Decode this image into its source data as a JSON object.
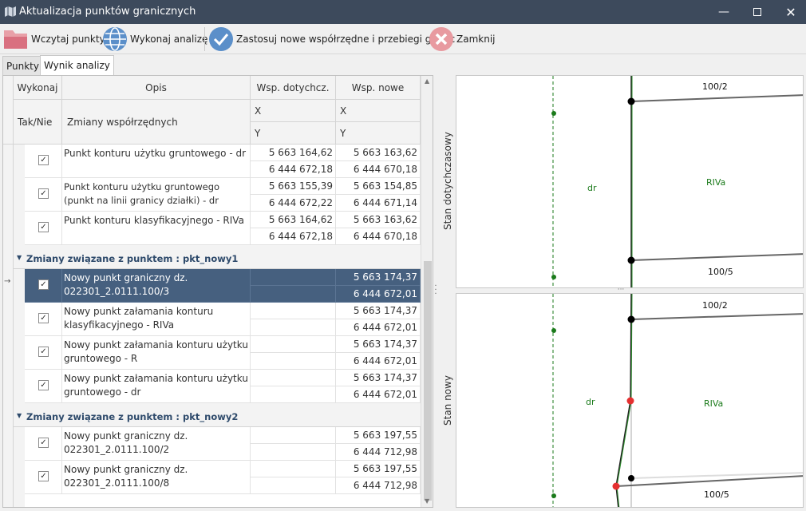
{
  "window": {
    "title": "Aktualizacja punktów granicznych"
  },
  "toolbar": {
    "load": "Wczytaj punkty",
    "analyze": "Wykonaj analizę",
    "apply": "Zastosuj nowe współrzędne i przebiegi granic",
    "close": "Zamknij"
  },
  "tabs": [
    "Punkty",
    "Wynik analizy"
  ],
  "grid": {
    "h_exec": "Wykonaj",
    "h_desc": "Opis",
    "h_old": "Wsp. dotychcz.",
    "h_new": "Wsp. nowe",
    "h_yesno": "Tak/Nie",
    "h_changes": "Zmiany współrzędnych",
    "h_x": "X",
    "h_y": "Y",
    "rows": [
      {
        "desc": "Punkt konturu użytku gruntowego - dr",
        "old_x": "5 663 164,62",
        "old_y": "6 444 672,18",
        "new_x": "5 663 163,62",
        "new_y": "6 444 670,18"
      },
      {
        "desc": "Punkt konturu użytku gruntowego (punkt na linii granicy działki) - dr",
        "old_x": "5 663 155,39",
        "old_y": "6 444 672,22",
        "new_x": "5 663 154,85",
        "new_y": "6 444 671,14"
      },
      {
        "desc": "Punkt konturu klasyfikacyjnego - RIVa",
        "old_x": "5 663 164,62",
        "old_y": "6 444 672,18",
        "new_x": "5 663 163,62",
        "new_y": "6 444 670,18"
      }
    ],
    "group1": "Zmiany związane z punktem : pkt_nowy1",
    "rows1": [
      {
        "desc": "Nowy punkt graniczny dz. 022301_2.0111.100/3",
        "new_x": "5 663 174,37",
        "new_y": "6 444 672,01"
      },
      {
        "desc": "Nowy punkt załamania konturu klasyfikacyjnego - RIVa",
        "new_x": "5 663 174,37",
        "new_y": "6 444 672,01"
      },
      {
        "desc": "Nowy punkt załamania konturu użytku gruntowego - R",
        "new_x": "5 663 174,37",
        "new_y": "6 444 672,01"
      },
      {
        "desc": "Nowy punkt załamania konturu użytku gruntowego - dr",
        "new_x": "5 663 174,37",
        "new_y": "6 444 672,01"
      }
    ],
    "group2": "Zmiany związane z punktem : pkt_nowy2",
    "rows2": [
      {
        "desc": "Nowy punkt graniczny dz. 022301_2.0111.100/2",
        "new_x": "5 663 197,55",
        "new_y": "6 444 712,98"
      },
      {
        "desc": "Nowy punkt graniczny dz. 022301_2.0111.100/8",
        "new_x": "5 663 197,55",
        "new_y": "6 444 712,98"
      }
    ],
    "checkmark": "✓"
  },
  "map": {
    "top_label": "Stan dotychczasowy",
    "bottom_label": "Stan nowy",
    "top": {
      "parcel_top": "100/2",
      "parcel_bottom": "100/5",
      "left": "dr",
      "right": "RIVa"
    },
    "bottom": {
      "parcel_top": "100/2",
      "parcel_bottom": "100/5",
      "left": "dr",
      "right": "RIVa"
    }
  },
  "colors": {
    "titlebar": "#3d4a5c",
    "selection": "#46607f",
    "group_text": "#2e4a6b",
    "map_green": "#1a7a1a",
    "map_red": "#e53030"
  }
}
